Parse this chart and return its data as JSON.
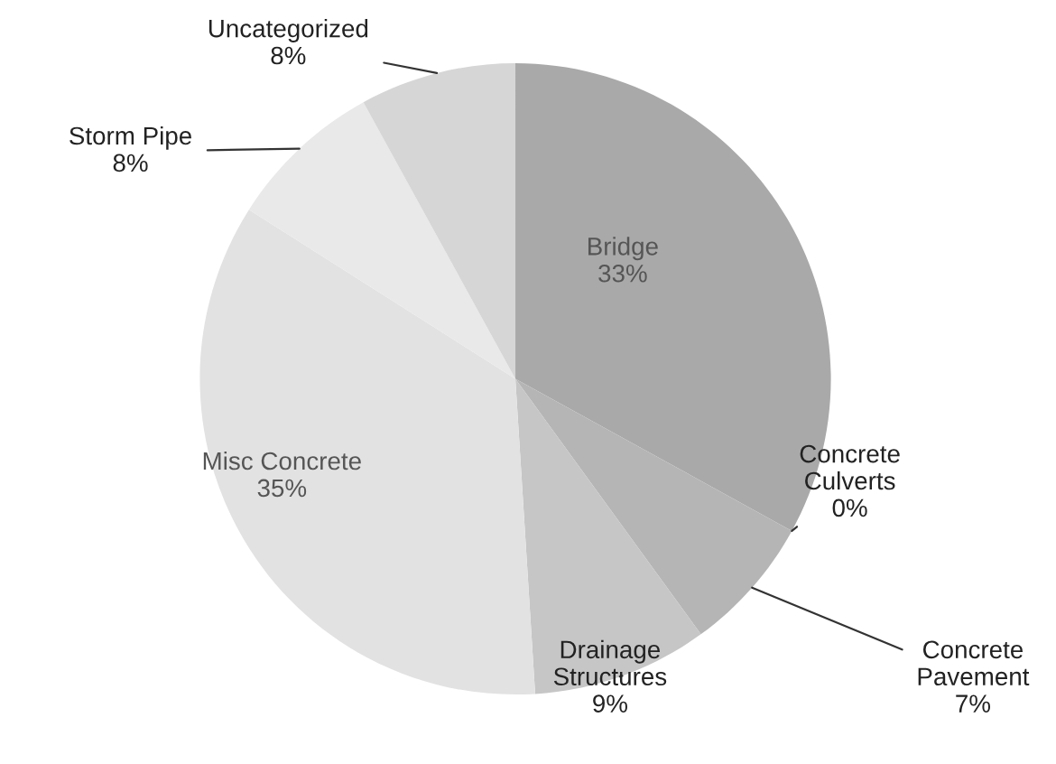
{
  "chart_data": {
    "type": "pie",
    "categories": [
      "Bridge",
      "Concrete Culverts",
      "Concrete Pavement",
      "Drainage Structures",
      "Misc Concrete",
      "Storm Pipe",
      "Uncategorized"
    ],
    "values": [
      33,
      0,
      7,
      9,
      35,
      8,
      8
    ],
    "colors": [
      "#a9a9a9",
      "#bdbdbd",
      "#b5b5b5",
      "#c6c6c6",
      "#e2e2e2",
      "#e9e9e9",
      "#d6d6d6"
    ],
    "value_labels": [
      "33%",
      "0%",
      "7%",
      "9%",
      "35%",
      "8%",
      "8%"
    ]
  }
}
